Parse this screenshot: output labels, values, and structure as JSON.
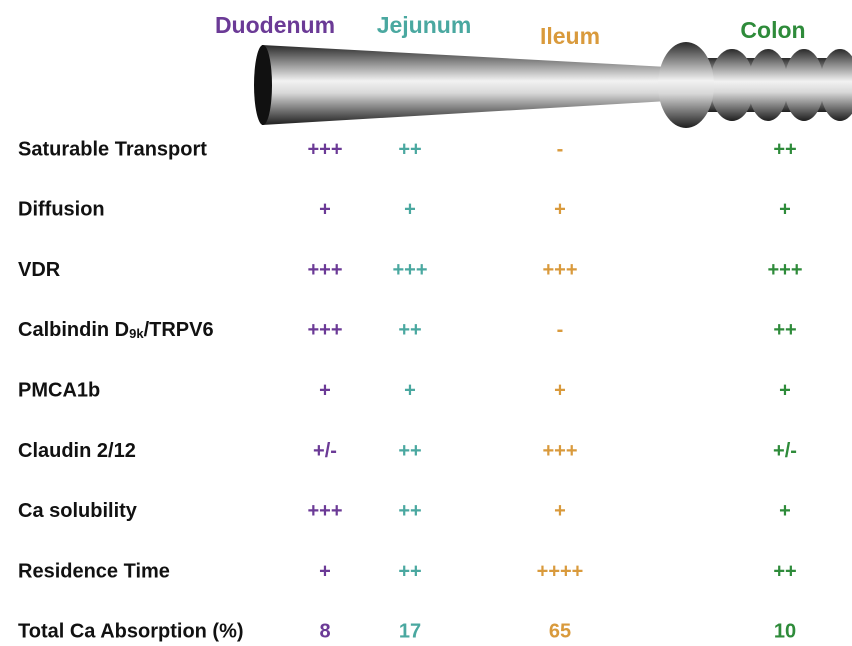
{
  "header": {
    "segments": [
      {
        "name": "Duodenum",
        "color": "#6b3a96"
      },
      {
        "name": "Jejunum",
        "color": "#4aa8a0"
      },
      {
        "name": "Ileum",
        "color": "#d99a3c"
      },
      {
        "name": "Colon",
        "color": "#2e8b3a"
      }
    ]
  },
  "table": {
    "rows": [
      {
        "label": "Saturable Transport",
        "values": [
          "+++",
          "++",
          "-",
          "++"
        ]
      },
      {
        "label": "Diffusion",
        "values": [
          "+",
          "+",
          "+",
          "+"
        ]
      },
      {
        "label": "VDR",
        "values": [
          "+++",
          "+++",
          "+++",
          "+++"
        ]
      },
      {
        "label_parts": [
          "Calbindin D",
          "9k",
          "/TRPV6"
        ],
        "values": [
          "+++",
          "++",
          "-",
          "++"
        ]
      },
      {
        "label": "PMCA1b",
        "values": [
          "+",
          "+",
          "+",
          "+"
        ]
      },
      {
        "label": "Claudin 2/12",
        "values": [
          "+/-",
          "++",
          "+++",
          "+/-"
        ]
      },
      {
        "label": "Ca solubility",
        "values": [
          "+++",
          "++",
          "+",
          "+"
        ]
      },
      {
        "label": "Residence Time",
        "values": [
          "+",
          "++",
          "++++",
          "++"
        ]
      },
      {
        "label": "Total Ca Absorption (%)",
        "values": [
          8,
          17,
          65,
          10
        ]
      }
    ]
  }
}
